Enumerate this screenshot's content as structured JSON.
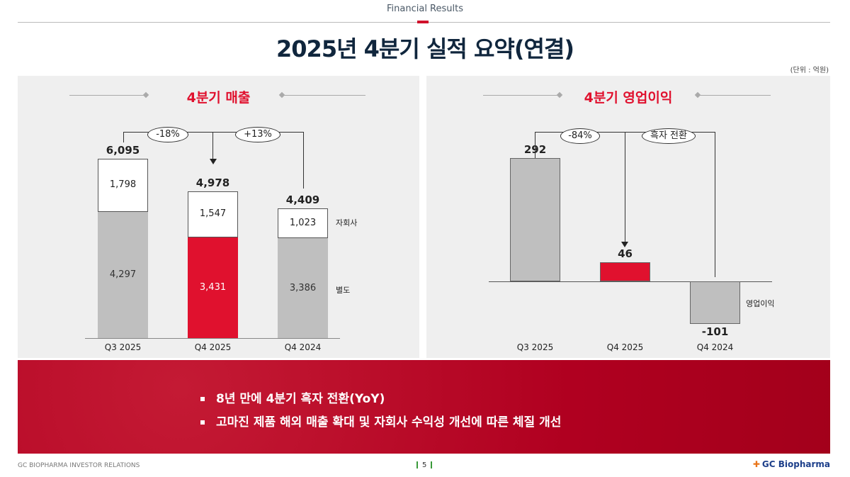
{
  "header": {
    "section": "Financial Results",
    "title": "2025년 4분기 실적 요약(연결)",
    "unit": "(단위 : 억원)"
  },
  "colors": {
    "accent": "#e0112e",
    "gray_bar": "#bfbfbf",
    "banner": "#b00020"
  },
  "chart_data": [
    {
      "type": "bar",
      "stacked": true,
      "title": "4분기 매출",
      "categories": [
        "Q3 2025",
        "Q4 2025",
        "Q4 2024"
      ],
      "series": [
        {
          "name": "별도",
          "values": [
            4297,
            3431,
            3386
          ]
        },
        {
          "name": "자회사",
          "values": [
            1798,
            1547,
            1023
          ]
        }
      ],
      "totals": [
        "6,095",
        "4,978",
        "4,409"
      ],
      "labels": {
        "별도": [
          "4,297",
          "3,431",
          "3,386"
        ],
        "자회사": [
          "1,798",
          "1,547",
          "1,023"
        ]
      },
      "annotations": [
        "-18%",
        "+13%"
      ]
    },
    {
      "type": "bar",
      "title": "4분기 영업이익",
      "categories": [
        "Q3 2025",
        "Q4 2025",
        "Q4 2024"
      ],
      "series": [
        {
          "name": "영업이익",
          "values": [
            292,
            46,
            -101
          ]
        }
      ],
      "labels": [
        "292",
        "46",
        "-101"
      ],
      "annotations": [
        "-84%",
        "흑자 전환"
      ]
    }
  ],
  "banner": {
    "bullets": [
      "8년 만에 4분기 흑자 전환(YoY)",
      "고마진 제품 해외 매출 확대 및 자회사 수익성 개선에 따른 체질 개선"
    ]
  },
  "footer": {
    "left": "GC BIOPHARMA  INVESTOR RELATIONS",
    "page": "5",
    "logo": "GC Biopharma"
  }
}
